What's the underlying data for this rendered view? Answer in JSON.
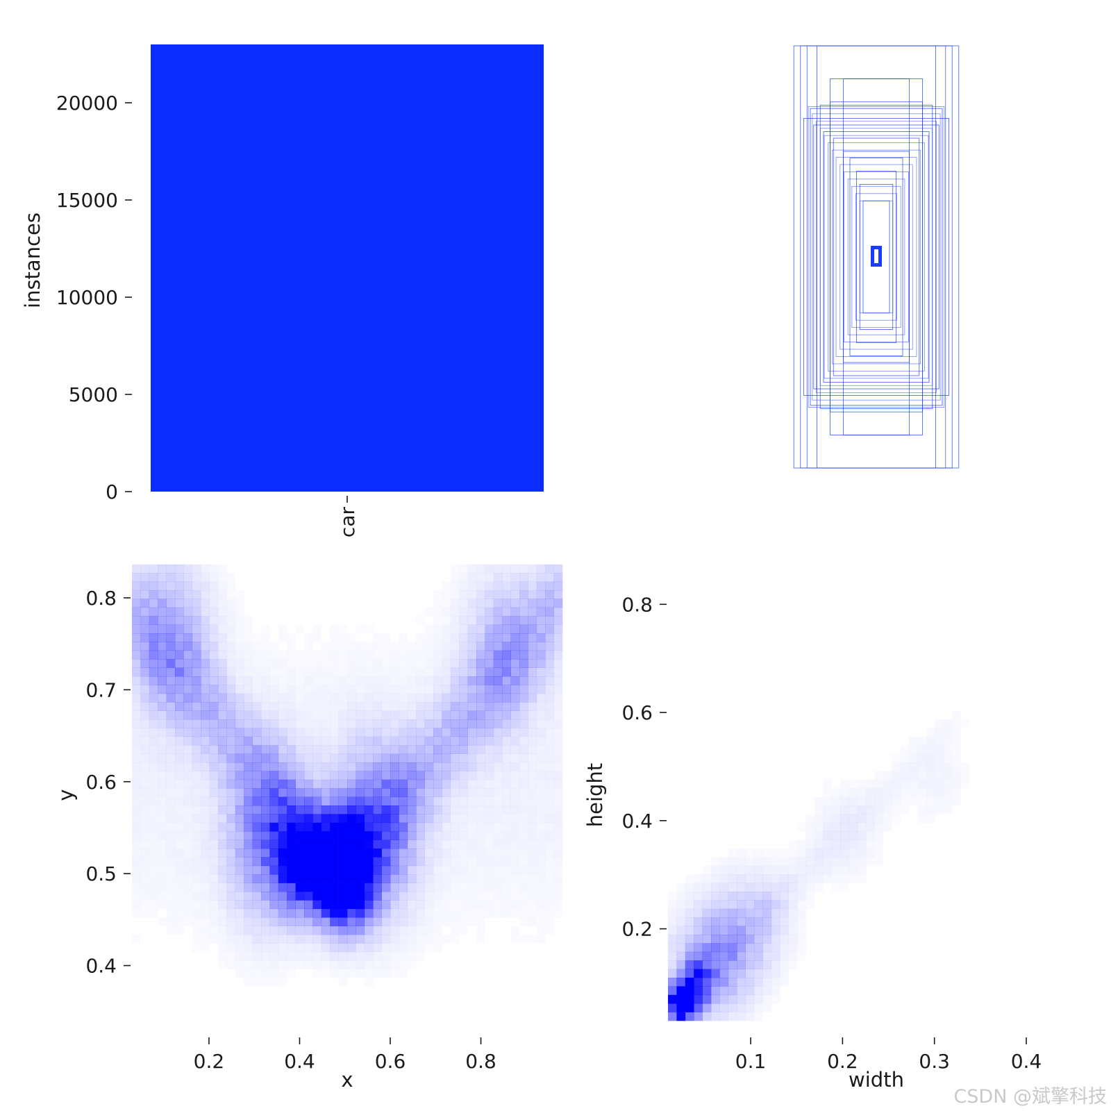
{
  "colors": {
    "bar": "#0a2cff",
    "box_stroke": "#1a3cff",
    "heat": "#0000ff",
    "text": "#1a1a1a"
  },
  "watermark": "CSDN @斌擎科技",
  "chart_data": [
    {
      "type": "bar",
      "categories": [
        "car"
      ],
      "values": [
        23000
      ],
      "ylabel": "instances",
      "yticks": [
        0,
        5000,
        10000,
        15000,
        20000
      ],
      "ylim": [
        0,
        23000
      ],
      "grid": false
    },
    {
      "type": "other",
      "description_kind": "bounding-box overlay (centered label boxes)",
      "boxes_wh": [
        [
          0.25,
          0.64
        ],
        [
          0.23,
          0.64
        ],
        [
          0.21,
          0.64
        ],
        [
          0.18,
          0.64
        ],
        [
          0.14,
          0.54
        ],
        [
          0.1,
          0.54
        ],
        [
          0.14,
          0.47
        ],
        [
          0.17,
          0.46
        ],
        [
          0.2,
          0.45
        ],
        [
          0.22,
          0.42
        ],
        [
          0.19,
          0.4
        ],
        [
          0.16,
          0.38
        ],
        [
          0.13,
          0.36
        ],
        [
          0.1,
          0.32
        ],
        [
          0.08,
          0.3
        ],
        [
          0.06,
          0.26
        ],
        [
          0.05,
          0.22
        ],
        [
          0.04,
          0.17
        ],
        [
          0.012,
          0.028
        ]
      ]
    },
    {
      "type": "heatmap",
      "xlabel": "x",
      "ylabel": "y",
      "xticks": [
        0.2,
        0.4,
        0.6,
        0.8
      ],
      "yticks": [
        0.4,
        0.5,
        0.6,
        0.7,
        0.8
      ],
      "xlim": [
        0.03,
        0.98
      ],
      "ylim": [
        0.34,
        0.84
      ],
      "grid": false,
      "hotspots": [
        {
          "x": 0.49,
          "y": 0.51,
          "intensity": 1.0
        },
        {
          "x": 0.44,
          "y": 0.51,
          "intensity": 0.85
        },
        {
          "x": 0.52,
          "y": 0.5,
          "intensity": 0.75
        },
        {
          "x": 0.38,
          "y": 0.52,
          "intensity": 0.6
        },
        {
          "x": 0.33,
          "y": 0.54,
          "intensity": 0.4
        },
        {
          "x": 0.57,
          "y": 0.55,
          "intensity": 0.45
        },
        {
          "x": 0.12,
          "y": 0.76,
          "intensity": 0.25
        },
        {
          "x": 0.85,
          "y": 0.75,
          "intensity": 0.2
        }
      ]
    },
    {
      "type": "heatmap",
      "xlabel": "width",
      "ylabel": "height",
      "xticks": [
        0.1,
        0.2,
        0.3,
        0.4
      ],
      "yticks": [
        0.2,
        0.4,
        0.6,
        0.8
      ],
      "xlim": [
        0.01,
        0.4
      ],
      "ylim": [
        0.03,
        0.88
      ],
      "grid": false,
      "hotspots": [
        {
          "x": 0.025,
          "y": 0.06,
          "intensity": 1.0
        },
        {
          "x": 0.04,
          "y": 0.1,
          "intensity": 0.6
        },
        {
          "x": 0.06,
          "y": 0.14,
          "intensity": 0.35
        },
        {
          "x": 0.1,
          "y": 0.22,
          "intensity": 0.15
        },
        {
          "x": 0.2,
          "y": 0.38,
          "intensity": 0.06
        },
        {
          "x": 0.3,
          "y": 0.48,
          "intensity": 0.04
        }
      ]
    }
  ]
}
